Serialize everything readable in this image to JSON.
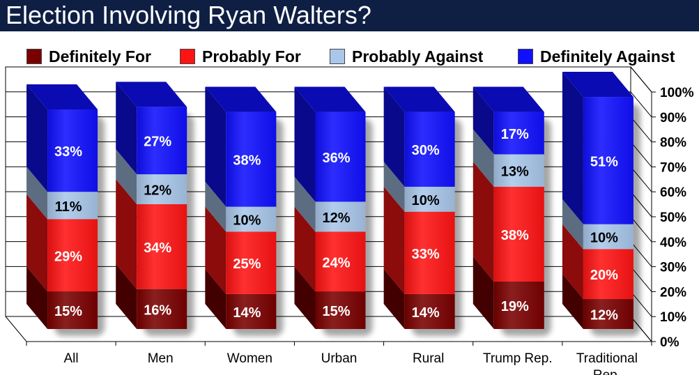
{
  "title": "Election Involving Ryan Walters?",
  "chart_data": {
    "type": "bar",
    "stacked": true,
    "categories": [
      [
        "All"
      ],
      [
        "Men"
      ],
      [
        "Women"
      ],
      [
        "Urban"
      ],
      [
        "Rural"
      ],
      [
        "Trump Rep."
      ],
      [
        "Traditional",
        "Rep."
      ]
    ],
    "series": [
      {
        "name": "Definitely For",
        "color": "#7a0000",
        "values": [
          15,
          16,
          14,
          15,
          14,
          19,
          12
        ]
      },
      {
        "name": "Probably For",
        "color": "#ff1414",
        "values": [
          29,
          34,
          25,
          24,
          33,
          38,
          20
        ]
      },
      {
        "name": "Probably Against",
        "color": "#a9c7ea",
        "values": [
          11,
          12,
          10,
          12,
          10,
          13,
          10
        ]
      },
      {
        "name": "Definitely Against",
        "color": "#1010ff",
        "values": [
          33,
          27,
          38,
          36,
          30,
          17,
          51
        ]
      }
    ],
    "ylim": [
      0,
      100
    ],
    "yticks": [
      "0%",
      "10%",
      "20%",
      "30%",
      "40%",
      "50%",
      "60%",
      "70%",
      "80%",
      "90%",
      "100%"
    ],
    "grid": true,
    "legend": "top"
  }
}
